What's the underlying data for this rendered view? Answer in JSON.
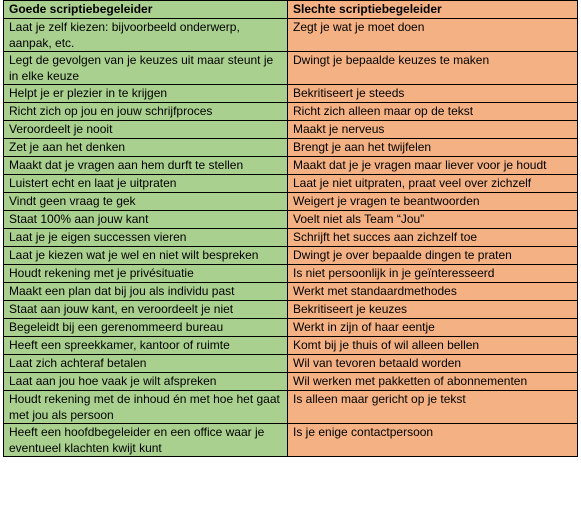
{
  "table": {
    "header": [
      "Goede scriptiebegeleider",
      "Slechte scriptiebegeleider"
    ],
    "rows": [
      [
        "Laat je zelf kiezen: bijvoorbeeld onderwerp, aanpak, etc.",
        "Zegt je wat je moet doen"
      ],
      [
        "Legt de gevolgen van je keuzes uit maar steunt je in elke keuze",
        "Dwingt je bepaalde keuzes te maken"
      ],
      [
        "Helpt je er plezier in te krijgen",
        "Bekritiseert je steeds"
      ],
      [
        "Richt zich op jou en jouw schrijfproces",
        "Richt zich alleen maar op de tekst"
      ],
      [
        "Veroordeelt je nooit",
        "Maakt je nerveus"
      ],
      [
        "Zet je aan het denken",
        "Brengt je aan het twijfelen"
      ],
      [
        "Maakt dat je vragen aan hem durft te stellen",
        "Maakt dat je je vragen maar liever voor je houdt"
      ],
      [
        "Luistert echt en laat je uitpraten",
        "Laat je niet uitpraten, praat veel over zichzelf"
      ],
      [
        "Vindt geen vraag te gek",
        "Weigert je vragen te beantwoorden"
      ],
      [
        "Staat 100% aan jouw kant",
        "Voelt niet als Team “Jou”"
      ],
      [
        "Laat je je eigen successen vieren",
        "Schrijft het succes aan zichzelf toe"
      ],
      [
        "Laat je kiezen wat je wel en niet wilt bespreken",
        "Dwingt je over bepaalde dingen te praten"
      ],
      [
        "Houdt rekening met je privésituatie",
        "Is niet persoonlijk in je geïnteresseerd"
      ],
      [
        "Maakt een plan dat bij jou als individu past",
        "Werkt met standaardmethodes"
      ],
      [
        "Staat aan jouw kant, en veroordeelt je niet",
        "Bekritiseert je keuzes"
      ],
      [
        "Begeleidt bij een gerenommeerd bureau",
        "Werkt in zijn of haar eentje"
      ],
      [
        "Heeft een spreekkamer, kantoor of ruimte",
        "Komt bij je thuis of wil alleen bellen"
      ],
      [
        "Laat zich achteraf betalen",
        "Wil van tevoren betaald worden"
      ],
      [
        "Laat aan jou hoe vaak je wilt afspreken",
        "Wil werken met pakketten of abonnementen"
      ],
      [
        "Houdt rekening met de inhoud én met hoe het gaat met jou als persoon",
        "Is alleen maar gericht op je tekst"
      ],
      [
        "Heeft een hoofdbegeleider en een office waar je eventueel klachten kwijt kunt",
        "Is je enige contactpersoon"
      ]
    ]
  }
}
